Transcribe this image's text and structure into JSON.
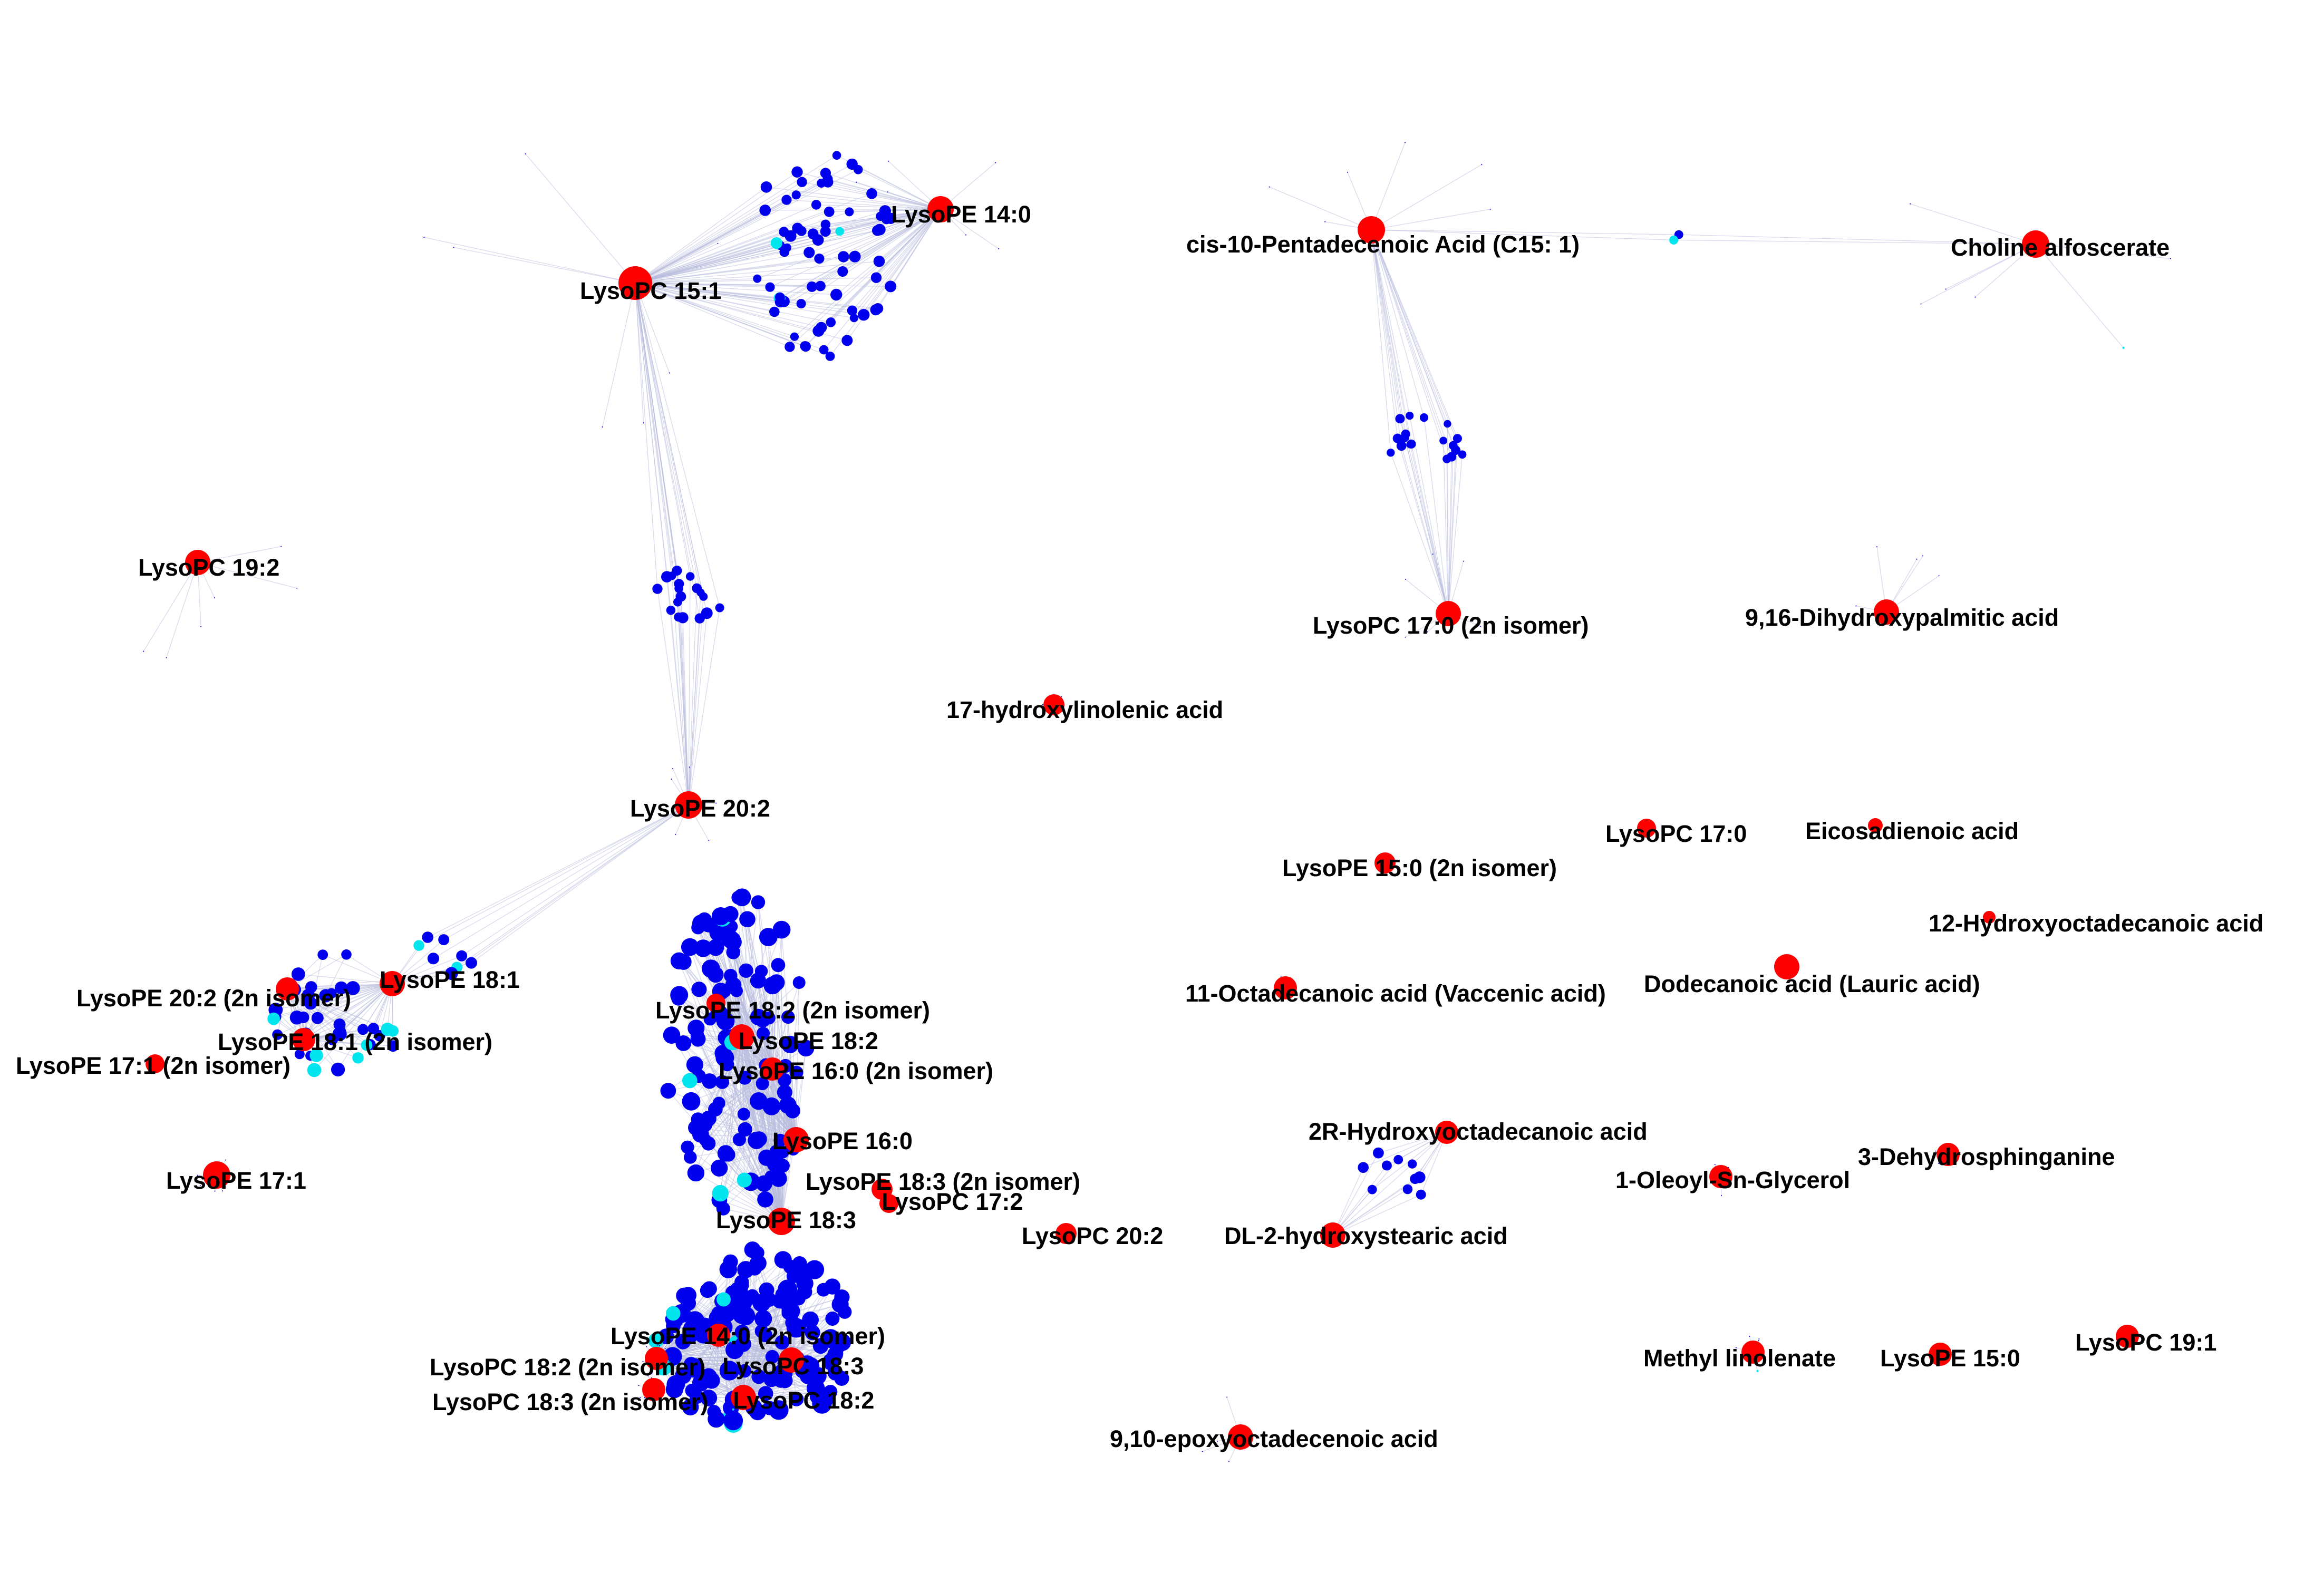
{
  "colors": {
    "hub_node": "#ff0000",
    "neighbor_node": "#0000ee",
    "highlight_node": "#00e5ee",
    "edge": "#b8bcdc",
    "background": "#ffffff"
  },
  "hubs": [
    {
      "id": "lysopc-15-1",
      "label": "LysoPC 15:1"
    },
    {
      "id": "lysope-14-0",
      "label": "LysoPE 14:0"
    },
    {
      "id": "cis-10-pentadecenoic-acid",
      "label": "cis-10-Pentadecenoic Acid (C15: 1)"
    },
    {
      "id": "choline-alfoscerate",
      "label": "Choline alfoscerate"
    },
    {
      "id": "lysopc-19-2",
      "label": "LysoPC 19:2"
    },
    {
      "id": "lysopc-17-0-2n-isomer",
      "label": "LysoPC 17:0 (2n isomer)"
    },
    {
      "id": "9-16-dihydroxypalmitic-acid",
      "label": "9,16-Dihydroxypalmitic acid"
    },
    {
      "id": "17-hydroxylinolenic-acid",
      "label": "17-hydroxylinolenic acid"
    },
    {
      "id": "lysope-20-2",
      "label": "LysoPE 20:2"
    },
    {
      "id": "lysopc-17-0",
      "label": "LysoPC 17:0"
    },
    {
      "id": "eicosadienoic-acid",
      "label": "Eicosadienoic acid"
    },
    {
      "id": "lysope-15-0-2n-isomer",
      "label": "LysoPE 15:0 (2n isomer)"
    },
    {
      "id": "12-hydroxyoctadecanoic-acid",
      "label": "12-Hydroxyoctadecanoic acid"
    },
    {
      "id": "11-octadecanoic-acid",
      "label": "11-Octadecanoic acid (Vaccenic acid)"
    },
    {
      "id": "dodecanoic-acid",
      "label": "Dodecanoic acid (Lauric acid)"
    },
    {
      "id": "lysope-18-1",
      "label": "LysoPE 18:1"
    },
    {
      "id": "lysope-20-2-2n-isomer",
      "label": "LysoPE 20:2 (2n isomer)"
    },
    {
      "id": "lysope-18-2-2n-isomer",
      "label": "LysoPE 18:2 (2n isomer)"
    },
    {
      "id": "lysope-18-1-2n-isomer",
      "label": "LysoPE 18:1 (2n isomer)"
    },
    {
      "id": "lysope-18-2",
      "label": "LysoPE 18:2"
    },
    {
      "id": "lysope-17-1-2n-isomer",
      "label": "LysoPE 17:1 (2n isomer)"
    },
    {
      "id": "lysope-16-0-2n-isomer",
      "label": "LysoPE 16:0 (2n isomer)"
    },
    {
      "id": "2r-hydroxyoctadecanoic-acid",
      "label": "2R-Hydroxyoctadecanoic acid"
    },
    {
      "id": "lysope-16-0",
      "label": "LysoPE 16:0"
    },
    {
      "id": "3-dehydrosphinganine",
      "label": "3-Dehydrosphinganine"
    },
    {
      "id": "lysope-17-1",
      "label": "LysoPE 17:1"
    },
    {
      "id": "lysope-18-3-2n-isomer",
      "label": "LysoPE 18:3 (2n isomer)"
    },
    {
      "id": "1-oleoyl-sn-glycerol",
      "label": "1-Oleoyl-Sn-Glycerol"
    },
    {
      "id": "lysopc-17-2",
      "label": "LysoPC 17:2"
    },
    {
      "id": "lysope-18-3",
      "label": "LysoPE 18:3"
    },
    {
      "id": "lysopc-20-2",
      "label": "LysoPC 20:2"
    },
    {
      "id": "dl-2-hydroxystearic-acid",
      "label": "DL-2-hydroxystearic acid"
    },
    {
      "id": "lysope-14-0-2n-isomer",
      "label": "LysoPE 14:0 (2n isomer)"
    },
    {
      "id": "lysopc-18-2-2n-isomer",
      "label": "LysoPC 18:2 (2n isomer)"
    },
    {
      "id": "lysopc-18-3",
      "label": "LysoPC 18:3"
    },
    {
      "id": "methyl-linolenate",
      "label": "Methyl linolenate"
    },
    {
      "id": "lysope-15-0",
      "label": "LysoPE 15:0"
    },
    {
      "id": "lysopc-19-1",
      "label": "LysoPC 19:1"
    },
    {
      "id": "lysopc-18-3-2n-isomer",
      "label": "LysoPC 18:3 (2n isomer)"
    },
    {
      "id": "lysopc-18-2",
      "label": "LysoPC 18:2"
    },
    {
      "id": "9-10-epoxyoctadecenoic-acid",
      "label": "9,10-epoxyoctadecenoic acid"
    }
  ]
}
